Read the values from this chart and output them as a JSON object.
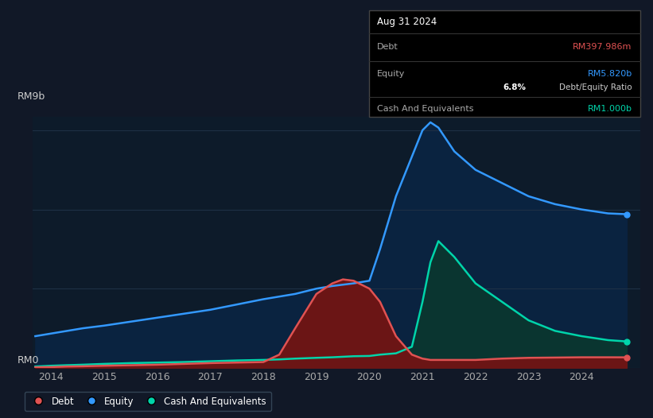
{
  "bg_color": "#111827",
  "plot_bg_color": "#0d1b2a",
  "grid_color": "#1e3045",
  "debt_color": "#e05252",
  "equity_color": "#3399ff",
  "cash_color": "#00d4aa",
  "debt_fill_color": "#6b1515",
  "equity_fill_color": "#0a2340",
  "cash_fill_color": "#0a3530",
  "ylabel_text": "RM9b",
  "ylabel0_text": "RM0",
  "x_ticks": [
    2014,
    2015,
    2016,
    2017,
    2018,
    2019,
    2020,
    2021,
    2022,
    2023,
    2024
  ],
  "years": [
    2013.7,
    2014.0,
    2014.3,
    2014.6,
    2015.0,
    2015.5,
    2016.0,
    2016.5,
    2017.0,
    2017.5,
    2018.0,
    2018.3,
    2018.6,
    2019.0,
    2019.3,
    2019.5,
    2019.7,
    2020.0,
    2020.2,
    2020.5,
    2020.8,
    2021.0,
    2021.15,
    2021.3,
    2021.6,
    2022.0,
    2022.5,
    2023.0,
    2023.5,
    2024.0,
    2024.5,
    2024.85
  ],
  "equity": [
    1.2,
    1.3,
    1.4,
    1.5,
    1.6,
    1.75,
    1.9,
    2.05,
    2.2,
    2.4,
    2.6,
    2.7,
    2.8,
    3.0,
    3.1,
    3.15,
    3.2,
    3.3,
    4.5,
    6.5,
    8.0,
    9.0,
    9.3,
    9.1,
    8.2,
    7.5,
    7.0,
    6.5,
    6.2,
    6.0,
    5.85,
    5.82
  ],
  "debt": [
    0.02,
    0.03,
    0.05,
    0.06,
    0.08,
    0.1,
    0.12,
    0.15,
    0.18,
    0.2,
    0.22,
    0.5,
    1.5,
    2.8,
    3.2,
    3.35,
    3.3,
    3.0,
    2.5,
    1.2,
    0.5,
    0.35,
    0.3,
    0.3,
    0.3,
    0.3,
    0.35,
    0.38,
    0.39,
    0.4,
    0.4,
    0.398
  ],
  "cash": [
    0.05,
    0.08,
    0.1,
    0.12,
    0.15,
    0.18,
    0.2,
    0.22,
    0.25,
    0.28,
    0.3,
    0.32,
    0.35,
    0.38,
    0.4,
    0.42,
    0.44,
    0.45,
    0.5,
    0.55,
    0.8,
    2.5,
    4.0,
    4.8,
    4.2,
    3.2,
    2.5,
    1.8,
    1.4,
    1.2,
    1.05,
    1.0
  ],
  "ylim": [
    0,
    9.5
  ],
  "xlim": [
    2013.65,
    2025.1
  ],
  "legend_items": [
    {
      "label": "Debt",
      "color": "#e05252"
    },
    {
      "label": "Equity",
      "color": "#3399ff"
    },
    {
      "label": "Cash And Equivalents",
      "color": "#00d4aa"
    }
  ],
  "tooltip": {
    "date": "Aug 31 2024",
    "debt_label": "Debt",
    "debt_value": "RM397.986m",
    "equity_label": "Equity",
    "equity_value": "RM5.820b",
    "ratio_bold": "6.8%",
    "ratio_text": " Debt/Equity Ratio",
    "cash_label": "Cash And Equivalents",
    "cash_value": "RM1.000b"
  }
}
